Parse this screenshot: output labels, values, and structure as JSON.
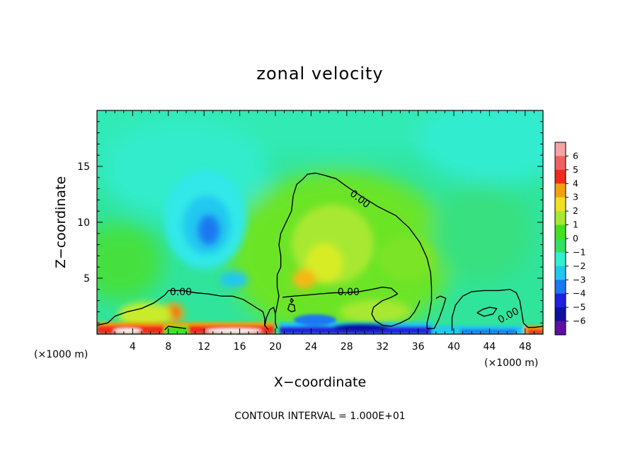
{
  "chart_data": {
    "type": "heatmap",
    "title": "zonal velocity",
    "xlabel": "X−coordinate",
    "ylabel": "Z−coordinate",
    "x_unit_label": "(×1000 m)",
    "x_unit_label_right": "(×1000 m)",
    "xlim": [
      0,
      50
    ],
    "ylim": [
      0,
      20
    ],
    "x_ticks": [
      4,
      8,
      12,
      16,
      20,
      24,
      28,
      32,
      36,
      40,
      44,
      48
    ],
    "x_tick_labels": [
      "4",
      "8",
      "12",
      "16",
      "20",
      "24",
      "28",
      "32",
      "36",
      "40",
      "44",
      "48"
    ],
    "y_ticks": [
      5,
      10,
      15
    ],
    "y_tick_labels": [
      "5",
      "10",
      "15"
    ],
    "colorbar": {
      "levels": [
        6,
        5,
        4,
        3,
        2,
        1,
        0,
        -1,
        -2,
        -3,
        -4,
        -5,
        -6
      ],
      "labels": [
        "6",
        "5",
        "4",
        "3",
        "2",
        "1",
        "0",
        "−1",
        "−2",
        "−3",
        "−4",
        "−5",
        "−6"
      ],
      "colors": [
        "#f5a3a3",
        "#f06060",
        "#f02a1e",
        "#f4a010",
        "#f0e020",
        "#a8e830",
        "#44e020",
        "#30e060",
        "#30f0d0",
        "#20c8f0",
        "#1a78f0",
        "#2020e0",
        "#1010a0",
        "#6010a0"
      ]
    },
    "contour_interval_text": "CONTOUR INTERVAL = 1.000E+01",
    "contour_label": "0.00",
    "contour_lines": [
      [
        [
          21.8,
          11.0
        ],
        [
          22.0,
          12.4
        ],
        [
          22.4,
          13.4
        ],
        [
          23.0,
          13.8
        ],
        [
          23.6,
          14.3
        ],
        [
          24.5,
          14.4
        ],
        [
          25.5,
          14.2
        ],
        [
          26.8,
          13.9
        ],
        [
          28.0,
          13.2
        ],
        [
          29.5,
          12.4
        ],
        [
          31.5,
          11.4
        ],
        [
          33.5,
          10.6
        ],
        [
          35.0,
          9.5
        ],
        [
          36.2,
          8.2
        ],
        [
          37.0,
          6.8
        ],
        [
          37.4,
          5.5
        ],
        [
          37.5,
          4.2
        ],
        [
          37.5,
          3.0
        ],
        [
          37.3,
          2.0
        ],
        [
          37.0,
          1.0
        ],
        [
          37.0,
          0.5
        ],
        [
          37.8,
          0.5
        ],
        [
          38.3,
          1.3
        ],
        [
          38.8,
          2.4
        ],
        [
          39.1,
          3.2
        ],
        [
          38.5,
          3.4
        ],
        [
          38.0,
          3.2
        ]
      ],
      [
        [
          21.8,
          11.0
        ],
        [
          21.2,
          10.0
        ],
        [
          20.6,
          9.0
        ],
        [
          20.4,
          8.0
        ],
        [
          20.6,
          7.0
        ],
        [
          20.6,
          6.0
        ],
        [
          20.2,
          5.3
        ],
        [
          20.2,
          4.2
        ],
        [
          20.4,
          3.4
        ],
        [
          20.2,
          2.6
        ],
        [
          20.0,
          1.8
        ],
        [
          20.0,
          1.0
        ],
        [
          20.2,
          0.5
        ]
      ],
      [
        [
          20.8,
          3.3
        ],
        [
          22.0,
          3.4
        ],
        [
          23.6,
          3.5
        ],
        [
          25.0,
          3.6
        ],
        [
          26.6,
          3.7
        ],
        [
          28.0,
          3.7
        ],
        [
          29.4,
          3.8
        ],
        [
          30.8,
          4.0
        ],
        [
          32.0,
          4.2
        ],
        [
          33.0,
          4.1
        ],
        [
          33.7,
          3.6
        ]
      ],
      [
        [
          33.7,
          3.6
        ],
        [
          33.0,
          3.3
        ],
        [
          32.0,
          3.0
        ],
        [
          31.0,
          2.4
        ],
        [
          30.8,
          1.8
        ],
        [
          31.2,
          1.2
        ],
        [
          32.0,
          0.8
        ],
        [
          33.0,
          0.7
        ],
        [
          34.0,
          1.0
        ],
        [
          35.0,
          1.4
        ],
        [
          35.6,
          2.0
        ],
        [
          36.0,
          2.6
        ],
        [
          36.2,
          3.0
        ]
      ],
      [
        [
          0.0,
          0.8
        ],
        [
          1.2,
          1.0
        ],
        [
          2.0,
          1.6
        ],
        [
          3.4,
          2.0
        ],
        [
          5.0,
          2.3
        ],
        [
          6.4,
          2.8
        ],
        [
          7.6,
          3.5
        ],
        [
          8.0,
          3.9
        ],
        [
          9.6,
          3.9
        ],
        [
          11.0,
          3.7
        ],
        [
          12.4,
          3.6
        ],
        [
          14.0,
          3.4
        ],
        [
          15.2,
          3.4
        ],
        [
          16.4,
          3.1
        ],
        [
          17.2,
          2.7
        ],
        [
          18.0,
          2.3
        ],
        [
          18.6,
          2.0
        ],
        [
          18.8,
          1.4
        ],
        [
          18.8,
          0.8
        ],
        [
          19.2,
          0.4
        ]
      ],
      [
        [
          7.6,
          0.4
        ],
        [
          8.0,
          0.7
        ],
        [
          9.0,
          0.6
        ],
        [
          10.0,
          0.5
        ]
      ],
      [
        [
          18.8,
          0.7
        ],
        [
          19.0,
          1.5
        ],
        [
          19.4,
          2.2
        ],
        [
          19.8,
          2.4
        ],
        [
          20.0,
          1.8
        ]
      ],
      [
        [
          21.4,
          2.2
        ],
        [
          21.8,
          2.0
        ],
        [
          22.2,
          2.1
        ],
        [
          22.1,
          2.6
        ],
        [
          21.6,
          2.7
        ],
        [
          21.4,
          2.2
        ]
      ],
      [
        [
          21.7,
          3.0
        ],
        [
          21.8,
          2.8
        ],
        [
          22.0,
          3.0
        ],
        [
          21.8,
          3.2
        ],
        [
          21.7,
          3.0
        ]
      ],
      [
        [
          39.8,
          0.3
        ],
        [
          39.8,
          1.5
        ],
        [
          40.2,
          2.6
        ],
        [
          41.0,
          3.4
        ],
        [
          42.0,
          3.8
        ],
        [
          43.4,
          3.9
        ],
        [
          45.0,
          3.9
        ],
        [
          46.3,
          4.0
        ],
        [
          47.0,
          3.7
        ],
        [
          47.4,
          3.0
        ],
        [
          47.6,
          2.0
        ],
        [
          47.8,
          1.0
        ],
        [
          48.3,
          0.6
        ],
        [
          49.0,
          0.6
        ],
        [
          50.0,
          0.7
        ]
      ],
      [
        [
          42.6,
          1.9
        ],
        [
          43.2,
          2.2
        ],
        [
          44.0,
          2.4
        ],
        [
          44.8,
          2.3
        ],
        [
          44.4,
          1.8
        ],
        [
          43.4,
          1.6
        ],
        [
          42.6,
          1.9
        ]
      ]
    ],
    "contour_label_positions": [
      [
        29.5,
        12.1
      ],
      [
        28.2,
        3.8
      ],
      [
        9.4,
        3.8
      ],
      [
        46.1,
        1.7
      ]
    ]
  }
}
